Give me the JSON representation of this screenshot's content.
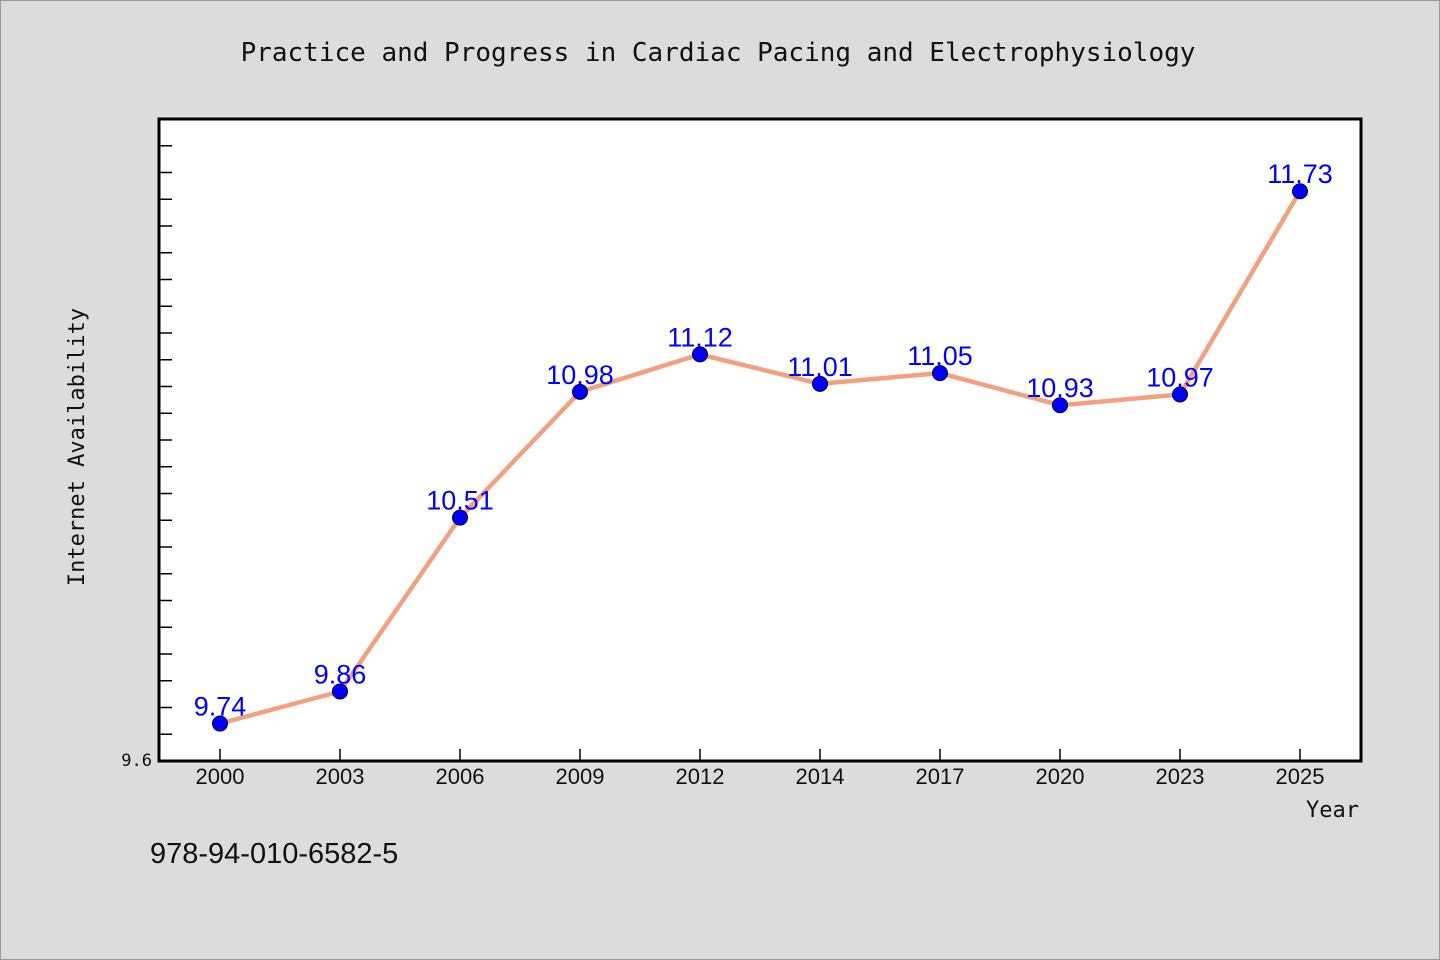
{
  "chart_data": {
    "type": "line",
    "title": "Practice and Progress in Cardiac Pacing and Electrophysiology",
    "xlabel": "Year",
    "ylabel": "Internet Availability",
    "categories": [
      "2000",
      "2003",
      "2006",
      "2009",
      "2012",
      "2014",
      "2017",
      "2020",
      "2023",
      "2025"
    ],
    "series": [
      {
        "values": [
          9.74,
          9.86,
          10.51,
          10.98,
          11.12,
          11.01,
          11.05,
          10.93,
          10.97,
          11.73
        ]
      }
    ],
    "data_labels": [
      "9.74",
      "9.86",
      "10.51",
      "10.98",
      "11.12",
      "11.01",
      "11.05",
      "10.93",
      "10.97",
      "11.73"
    ],
    "ylim": [
      9.6,
      12.0
    ],
    "y_tick_label": "9.6",
    "grid": false,
    "colors": {
      "line": "#f4a07e",
      "marker": "#0000ff",
      "label": "#0000ff",
      "background": "#dcdcdc",
      "plot_bg": "#ffffff"
    }
  },
  "footnote": "978-94-010-6582-5"
}
